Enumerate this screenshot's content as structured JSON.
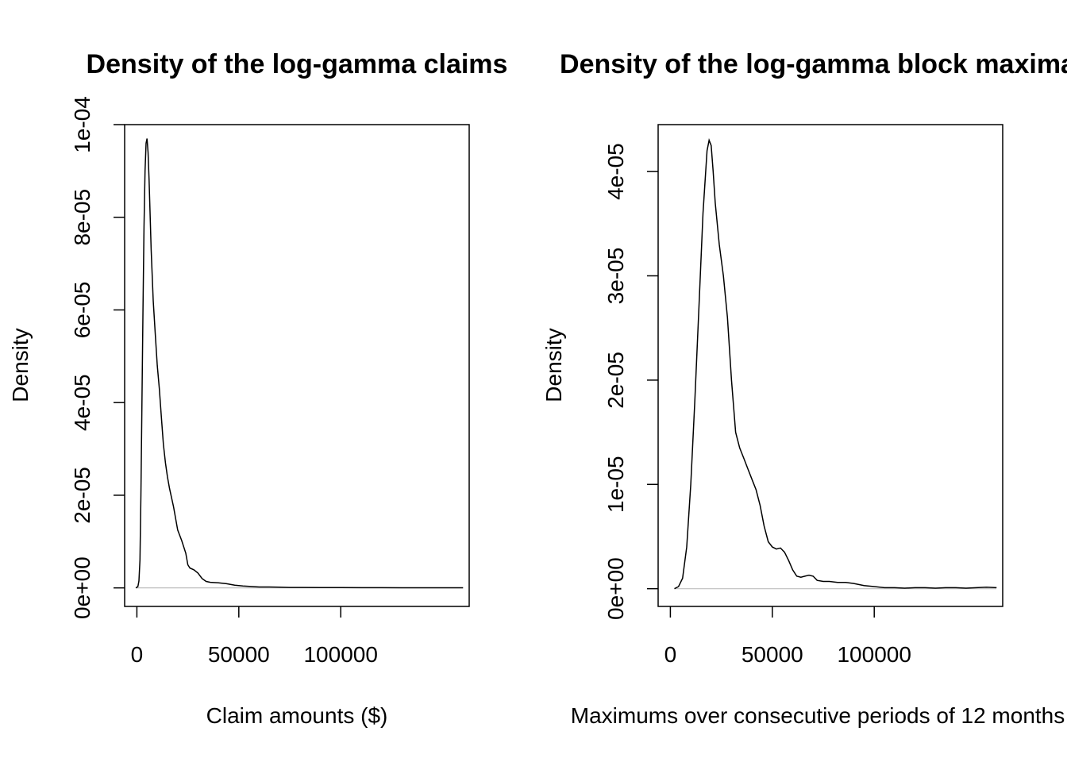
{
  "chart_data": [
    {
      "type": "line",
      "title": "Density of the log-gamma claims",
      "xlabel": "Claim amounts ($)",
      "ylabel": "Density",
      "xlim": [
        -6000,
        163000
      ],
      "ylim": [
        -4e-06,
        0.0001
      ],
      "x_ticks": [
        0,
        50000,
        100000
      ],
      "x_tick_labels": [
        "0",
        "50000",
        "100000"
      ],
      "y_ticks": [
        0,
        2e-05,
        4e-05,
        6e-05,
        8e-05,
        0.0001
      ],
      "y_tick_labels": [
        "0e+00",
        "2e-05",
        "4e-05",
        "6e-05",
        "8e-05",
        "1e-04"
      ],
      "baseline": 0,
      "grid": false,
      "series": [
        {
          "x": [
            -500,
            500,
            1000,
            1500,
            2000,
            2500,
            3000,
            3500,
            4000,
            4500,
            5000,
            5500,
            6000,
            7000,
            8000,
            9000,
            10000,
            11000,
            12000,
            13000,
            14000,
            15000,
            16000,
            18000,
            20000,
            22000,
            24000,
            25000,
            26000,
            28000,
            30000,
            32000,
            34000,
            36000,
            40000,
            44000,
            48000,
            52000,
            56000,
            60000,
            65000,
            70000,
            75000,
            80000,
            90000,
            100000,
            110000,
            120000,
            130000,
            140000,
            150000,
            160000
          ],
          "y": [
            0,
            3e-07,
            1.5e-06,
            6e-06,
            2e-05,
            4e-05,
            6e-05,
            7.8e-05,
            9e-05,
            9.6e-05,
            9.7e-05,
            9.4e-05,
            8.8e-05,
            7.3e-05,
            6.2e-05,
            5.5e-05,
            4.8e-05,
            4.3e-05,
            3.7e-05,
            3.1e-05,
            2.7e-05,
            2.4e-05,
            2.15e-05,
            1.75e-05,
            1.25e-05,
            1.02e-05,
            7.5e-06,
            5e-06,
            4.3e-06,
            3.9e-06,
            3.2e-06,
            2e-06,
            1.4e-06,
            1.2e-06,
            1.1e-06,
            9e-07,
            6e-07,
            4e-07,
            3e-07,
            2e-07,
            2e-07,
            1.5e-07,
            1e-07,
            1e-07,
            8e-08,
            6e-08,
            5e-08,
            4e-08,
            3e-08,
            3e-08,
            2e-08,
            2e-08
          ]
        }
      ]
    },
    {
      "type": "line",
      "title": "Density of the log-gamma block maxima",
      "xlabel": "Maximums over consecutive periods of 12 months",
      "ylabel": "Density",
      "xlim": [
        -6000,
        163000
      ],
      "ylim": [
        -1.7e-06,
        4.45e-05
      ],
      "x_ticks": [
        0,
        50000,
        100000
      ],
      "x_tick_labels": [
        "0",
        "50000",
        "100000"
      ],
      "y_ticks": [
        0,
        1e-05,
        2e-05,
        3e-05,
        4e-05
      ],
      "y_tick_labels": [
        "0e+00",
        "1e-05",
        "2e-05",
        "3e-05",
        "4e-05"
      ],
      "baseline": 0,
      "grid": false,
      "series": [
        {
          "x": [
            2000,
            4000,
            6000,
            8000,
            10000,
            12000,
            14000,
            16000,
            18000,
            19000,
            20000,
            21000,
            22000,
            24000,
            26000,
            28000,
            30000,
            32000,
            34000,
            36000,
            38000,
            40000,
            42000,
            44000,
            46000,
            48000,
            50000,
            52000,
            54000,
            56000,
            58000,
            60000,
            62000,
            64000,
            66000,
            68000,
            70000,
            72000,
            75000,
            78000,
            82000,
            86000,
            90000,
            95000,
            100000,
            105000,
            110000,
            115000,
            120000,
            125000,
            130000,
            135000,
            140000,
            145000,
            150000,
            155000,
            160000
          ],
          "y": [
            0,
            2e-07,
            1e-06,
            4e-06,
            1e-05,
            1.8e-05,
            2.7e-05,
            3.6e-05,
            4.2e-05,
            4.3e-05,
            4.25e-05,
            4e-05,
            3.7e-05,
            3.3e-05,
            3e-05,
            2.6e-05,
            2e-05,
            1.5e-05,
            1.35e-05,
            1.25e-05,
            1.15e-05,
            1.05e-05,
            9.5e-06,
            8e-06,
            6e-06,
            4.5e-06,
            4e-06,
            3.8e-06,
            3.9e-06,
            3.5e-06,
            2.7e-06,
            1.8e-06,
            1.2e-06,
            1.1e-06,
            1.2e-06,
            1.3e-06,
            1.2e-06,
            8e-07,
            7e-07,
            7e-07,
            6e-07,
            6e-07,
            5e-07,
            3e-07,
            2e-07,
            1e-07,
            1e-07,
            5e-08,
            1e-07,
            1e-07,
            5e-08,
            1e-07,
            1e-07,
            5e-08,
            1e-07,
            1.5e-07,
            1e-07
          ]
        }
      ]
    }
  ]
}
